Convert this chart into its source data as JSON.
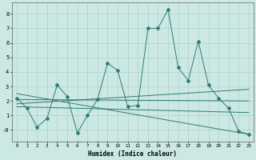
{
  "xlabel": "Humidex (Indice chaleur)",
  "series1_x": [
    0,
    1,
    2,
    3,
    4,
    5,
    6,
    7,
    8,
    9,
    10,
    11,
    12,
    13,
    14,
    15,
    16,
    17,
    18,
    19,
    20,
    21,
    22,
    23
  ],
  "series1_y": [
    2.2,
    1.5,
    0.2,
    0.8,
    3.1,
    2.3,
    -0.2,
    1.0,
    2.1,
    4.6,
    4.1,
    1.6,
    1.7,
    7.0,
    7.0,
    8.3,
    4.3,
    3.4,
    6.1,
    3.1,
    2.2,
    1.5,
    -0.1,
    -0.3
  ],
  "trend1_x": [
    0,
    23
  ],
  "trend1_y": [
    1.8,
    2.8
  ],
  "trend2_x": [
    0,
    23
  ],
  "trend2_y": [
    2.1,
    2.0
  ],
  "trend3_x": [
    0,
    23
  ],
  "trend3_y": [
    1.6,
    1.2
  ],
  "trend4_x": [
    0,
    23
  ],
  "trend4_y": [
    2.5,
    -0.3
  ],
  "line_color": "#2e7d6e",
  "bg_color": "#cce8e4",
  "grid_color": "#aed0cc",
  "ylim": [
    -0.8,
    8.8
  ],
  "xlim": [
    -0.5,
    23.5
  ],
  "yticks": [
    0,
    1,
    2,
    3,
    4,
    5,
    6,
    7,
    8
  ],
  "ytick_labels": [
    "-0",
    "1",
    "2",
    "3",
    "4",
    "5",
    "6",
    "7",
    "8"
  ],
  "xticks": [
    0,
    1,
    2,
    3,
    4,
    5,
    6,
    7,
    8,
    9,
    10,
    11,
    12,
    13,
    14,
    15,
    16,
    17,
    18,
    19,
    20,
    21,
    22,
    23
  ],
  "figsize": [
    3.2,
    2.0
  ],
  "dpi": 100
}
